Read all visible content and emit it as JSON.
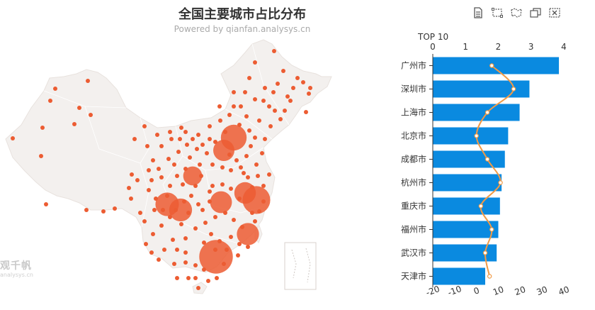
{
  "header": {
    "title": "全国主要城市占比分布",
    "subtitle": "Powered by qianfan.analysys.cn"
  },
  "watermark": {
    "main": "观千帆",
    "sub": "analysys.cn"
  },
  "toolbox": {
    "icons": [
      "data-view-icon",
      "zoom-select-icon",
      "zoom-reset-icon",
      "restore-icon",
      "clear-icon"
    ],
    "color": "#555555"
  },
  "colors": {
    "map_fill": "#f3f0ee",
    "map_stroke": "#e8e2de",
    "scatter": "#ec5c32",
    "bar": "#0a8ae0",
    "line": "#f29a45",
    "axis": "#333333"
  },
  "chart_data": [
    {
      "type": "scatter",
      "map": "china",
      "title": "全国主要城市占比分布",
      "points": [
        {
          "name": "广州市",
          "value": 3.85
        },
        {
          "name": "深圳市",
          "value": 2.95
        },
        {
          "name": "上海市",
          "value": 2.65
        },
        {
          "name": "北京市",
          "value": 2.3
        },
        {
          "name": "成都市",
          "value": 2.2
        },
        {
          "name": "杭州市",
          "value": 2.1
        },
        {
          "name": "重庆市",
          "value": 2.05
        },
        {
          "name": "福州市",
          "value": 2.0
        },
        {
          "name": "武汉市",
          "value": 1.95
        },
        {
          "name": "天津市",
          "value": 1.6
        }
      ]
    },
    {
      "type": "bar",
      "orientation": "horizontal",
      "title": "TOP 10",
      "categories": [
        "广州市",
        "深圳市",
        "上海市",
        "北京市",
        "成都市",
        "杭州市",
        "重庆市",
        "福州市",
        "武汉市",
        "天津市"
      ],
      "series": [
        {
          "type": "bar",
          "values": [
            3.85,
            2.95,
            2.65,
            2.3,
            2.2,
            2.1,
            2.05,
            2.0,
            1.95,
            1.6
          ]
        },
        {
          "type": "line",
          "axis": "bottom",
          "values": [
            7,
            17,
            5,
            0,
            5,
            11,
            2,
            7,
            4,
            6
          ]
        }
      ],
      "xlim_top": [
        0,
        4
      ],
      "xticks_top": [
        "0",
        "1",
        "2",
        "3",
        "4"
      ],
      "xlim_bottom": [
        -20,
        40
      ],
      "xticks_bottom": [
        "-20",
        "-10",
        "0",
        "10",
        "20",
        "30",
        "40"
      ]
    }
  ]
}
